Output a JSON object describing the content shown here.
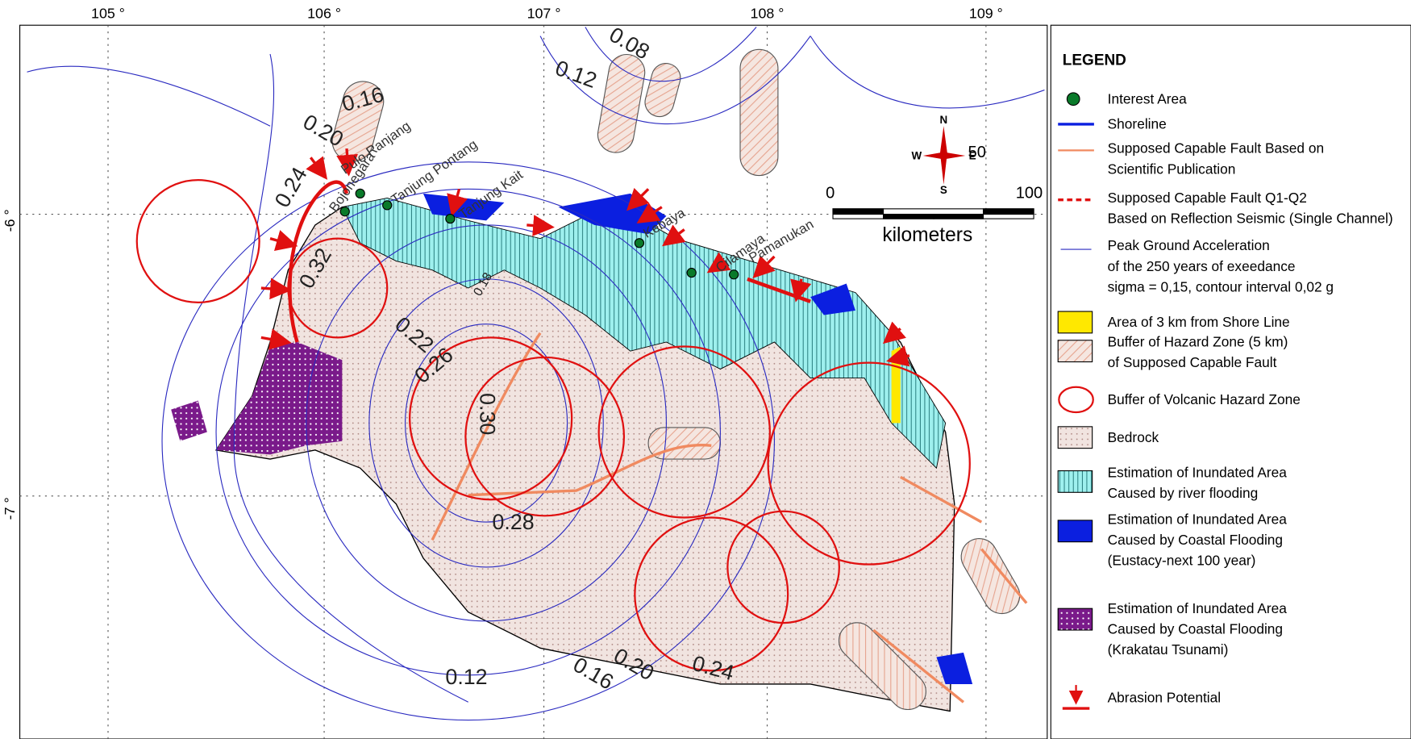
{
  "map": {
    "lon_labels": [
      "105 °",
      "106 °",
      "107 °",
      "108 °",
      "109 °"
    ],
    "lat_labels": [
      "-6 °",
      "-7 °"
    ],
    "contour_labels": [
      "0.08",
      "0.12",
      "0.16",
      "0.20",
      "0.24",
      "0.32",
      "0.22",
      "0.26",
      "0.30",
      "0.18",
      "0.28",
      "0.12",
      "0.16",
      "0.20",
      "0.24"
    ],
    "places": [
      "Pulo Ranjang",
      "Bojonegara",
      "Tanjung Pontang",
      "Tanjung Kait",
      "Kebaya",
      "Cilamaya",
      "Pamanukan"
    ],
    "compass": {
      "n": "N",
      "s": "S",
      "w": "W",
      "e": "E"
    },
    "scale": {
      "start": "0",
      "mid": "50",
      "end": "100",
      "unit": "kilometers"
    }
  },
  "legend": {
    "title": "LEGEND",
    "items": [
      [
        "Interest Area"
      ],
      [
        "Shoreline"
      ],
      [
        "Supposed Capable Fault Based on",
        "Scientific Publication"
      ],
      [
        "Supposed Capable Fault Q1-Q2",
        "Based on Reflection Seismic (Single Channel)"
      ],
      [
        "Peak Ground Acceleration",
        "of the 250 years of  exeedance",
        "sigma = 0,15, contour interval  0,02 g"
      ],
      [
        "Area of 3 km from Shore Line"
      ],
      [
        "Buffer of Hazard Zone (5 km)",
        "of Supposed Capable Fault"
      ],
      [
        "Buffer of Volcanic Hazard Zone"
      ],
      [
        "Bedrock"
      ],
      [
        "Estimation of Inundated Area",
        "Caused by river flooding"
      ],
      [
        "Estimation of Inundated Area",
        "Caused by Coastal Flooding",
        "(Eustacy-next 100 year)"
      ],
      [
        "Estimation of Inundated Area",
        "Caused by Coastal Flooding",
        "(Krakatau Tsunami)"
      ],
      [
        "Abrasion Potential"
      ]
    ]
  }
}
